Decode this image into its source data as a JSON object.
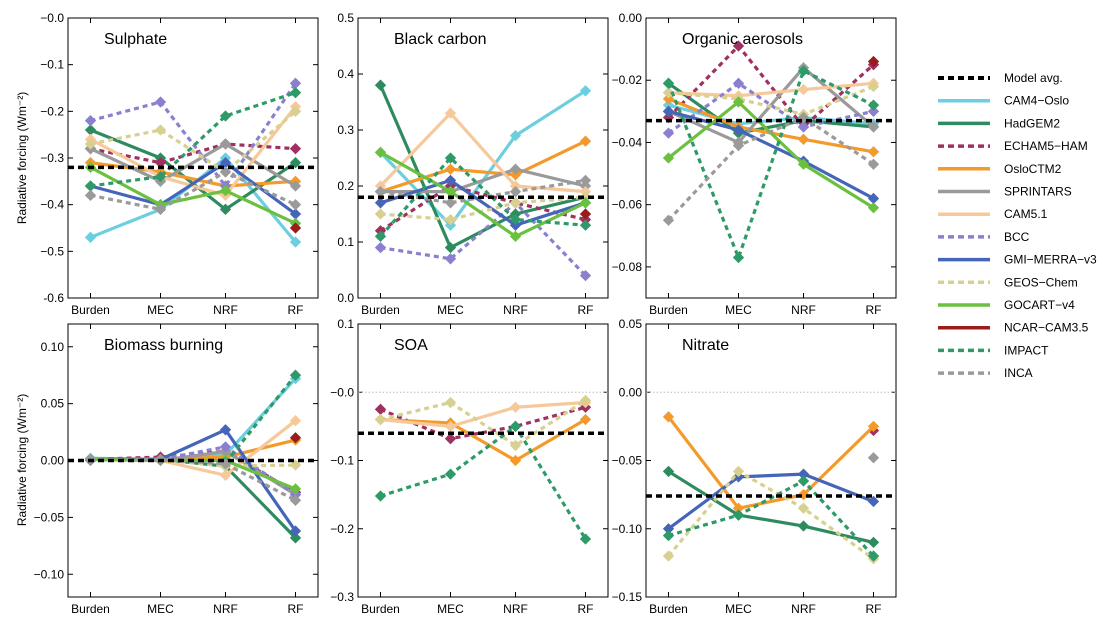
{
  "ylabel": "Radiative forcing (Wm⁻²)",
  "categories": [
    "Burden",
    "MEC",
    "NRF",
    "RF"
  ],
  "legend": [
    {
      "name": "Model avg.",
      "color": "#000000",
      "dash": true
    },
    {
      "name": "CAM4−Oslo",
      "color": "#6ccfe0",
      "dash": false
    },
    {
      "name": "HadGEM2",
      "color": "#2e8b5f",
      "dash": false
    },
    {
      "name": "ECHAM5−HAM",
      "color": "#a03060",
      "dash": true
    },
    {
      "name": "OsloCTM2",
      "color": "#f39a2a",
      "dash": false
    },
    {
      "name": "SPRINTARS",
      "color": "#9a9a9a",
      "dash": false
    },
    {
      "name": "CAM5.1",
      "color": "#f7c89a",
      "dash": false
    },
    {
      "name": "BCC",
      "color": "#8a80d0",
      "dash": true
    },
    {
      "name": "GMI−MERRA−v3",
      "color": "#4565b8",
      "dash": false
    },
    {
      "name": "GEOS−Chem",
      "color": "#d8d090",
      "dash": true
    },
    {
      "name": "GOCART−v4",
      "color": "#6cc040",
      "dash": false
    },
    {
      "name": "NCAR−CAM3.5",
      "color": "#9a1c1c",
      "dash": false
    },
    {
      "name": "IMPACT",
      "color": "#2e9a68",
      "dash": true
    },
    {
      "name": "INCA",
      "color": "#9a9a9a",
      "dash": true
    }
  ],
  "chart_data": [
    {
      "type": "line",
      "title": "Sulphate",
      "categories": [
        "Burden",
        "MEC",
        "NRF",
        "RF"
      ],
      "ylim": [
        -0.6,
        0.0
      ],
      "yticks": [
        -0.6,
        -0.5,
        -0.4,
        -0.3,
        -0.2,
        -0.1,
        0.0
      ],
      "ytick_labels": [
        "-0.6",
        "−0.5",
        "−0.4",
        "−0.3",
        "−0.2",
        "−0.1",
        "−0.0"
      ],
      "model_avg": -0.32,
      "zero_line": false,
      "series": [
        {
          "name": "CAM4−Oslo",
          "values": [
            -0.47,
            -0.41,
            -0.3,
            -0.48
          ]
        },
        {
          "name": "HadGEM2",
          "values": [
            -0.24,
            -0.3,
            -0.41,
            -0.31
          ]
        },
        {
          "name": "ECHAM5−HAM",
          "values": [
            -0.28,
            -0.31,
            -0.27,
            -0.28
          ]
        },
        {
          "name": "OsloCTM2",
          "values": [
            -0.31,
            -0.33,
            -0.36,
            -0.35
          ]
        },
        {
          "name": "SPRINTARS",
          "values": [
            -0.28,
            -0.35,
            -0.27,
            -0.36
          ]
        },
        {
          "name": "CAM5.1",
          "values": [
            -0.26,
            -0.34,
            -0.38,
            -0.19
          ]
        },
        {
          "name": "BCC",
          "values": [
            -0.22,
            -0.18,
            -0.36,
            -0.14
          ]
        },
        {
          "name": "GMI−MERRA−v3",
          "values": [
            -0.36,
            -0.4,
            -0.31,
            -0.42
          ]
        },
        {
          "name": "GEOS−Chem",
          "values": [
            -0.27,
            -0.24,
            -0.33,
            -0.2
          ]
        },
        {
          "name": "GOCART−v4",
          "values": [
            -0.32,
            -0.4,
            -0.37,
            -0.44
          ]
        },
        {
          "name": "NCAR−CAM3.5",
          "values": [
            null,
            null,
            null,
            -0.45
          ]
        },
        {
          "name": "IMPACT",
          "values": [
            -0.36,
            -0.34,
            -0.21,
            -0.16
          ]
        },
        {
          "name": "INCA",
          "values": [
            -0.38,
            -0.41,
            -0.33,
            -0.4
          ]
        }
      ]
    },
    {
      "type": "line",
      "title": "Black carbon",
      "categories": [
        "Burden",
        "MEC",
        "NRF",
        "RF"
      ],
      "ylim": [
        0.0,
        0.5
      ],
      "yticks": [
        0.0,
        0.1,
        0.2,
        0.3,
        0.4,
        0.5
      ],
      "ytick_labels": [
        "0.0",
        "0.1",
        "0.2",
        "0.3",
        "0.4",
        "0.5"
      ],
      "model_avg": 0.18,
      "zero_line": false,
      "series": [
        {
          "name": "CAM4−Oslo",
          "values": [
            0.26,
            0.13,
            0.29,
            0.37
          ]
        },
        {
          "name": "HadGEM2",
          "values": [
            0.38,
            0.09,
            0.15,
            0.18
          ]
        },
        {
          "name": "ECHAM5−HAM",
          "values": [
            0.12,
            0.2,
            0.17,
            0.14
          ]
        },
        {
          "name": "OsloCTM2",
          "values": [
            0.19,
            0.23,
            0.22,
            0.28
          ]
        },
        {
          "name": "SPRINTARS",
          "values": [
            0.19,
            0.19,
            0.23,
            0.2
          ]
        },
        {
          "name": "CAM5.1",
          "values": [
            0.2,
            0.33,
            0.2,
            0.19
          ]
        },
        {
          "name": "BCC",
          "values": [
            0.09,
            0.07,
            0.17,
            0.04
          ]
        },
        {
          "name": "GMI−MERRA−v3",
          "values": [
            0.17,
            0.21,
            0.13,
            0.17
          ]
        },
        {
          "name": "GEOS−Chem",
          "values": [
            0.15,
            0.14,
            0.17,
            0.18
          ]
        },
        {
          "name": "GOCART−v4",
          "values": [
            0.26,
            0.19,
            0.11,
            0.17
          ]
        },
        {
          "name": "NCAR−CAM3.5",
          "values": [
            null,
            null,
            null,
            0.15
          ]
        },
        {
          "name": "IMPACT",
          "values": [
            0.11,
            0.25,
            0.14,
            0.13
          ]
        },
        {
          "name": "INCA",
          "values": [
            0.19,
            0.17,
            0.19,
            0.21
          ]
        }
      ]
    },
    {
      "type": "line",
      "title": "Organic aerosols",
      "categories": [
        "Burden",
        "MEC",
        "NRF",
        "RF"
      ],
      "ylim": [
        -0.09,
        0.0
      ],
      "yticks": [
        -0.08,
        -0.06,
        -0.04,
        -0.02,
        0.0
      ],
      "ytick_labels": [
        "−0.08",
        "−0.06",
        "−0.04",
        "−0.02",
        "0.00"
      ],
      "model_avg": -0.033,
      "zero_line": false,
      "series": [
        {
          "name": "CAM4−Oslo",
          "values": [
            -0.028,
            -0.034,
            -0.032,
            -0.034
          ]
        },
        {
          "name": "HadGEM2",
          "values": [
            -0.021,
            -0.037,
            -0.033,
            -0.035
          ]
        },
        {
          "name": "ECHAM5−HAM",
          "values": [
            -0.032,
            -0.009,
            -0.035,
            -0.015
          ]
        },
        {
          "name": "OsloCTM2",
          "values": [
            -0.026,
            -0.035,
            -0.039,
            -0.043
          ]
        },
        {
          "name": "SPRINTARS",
          "values": [
            -0.03,
            -0.04,
            -0.016,
            -0.035
          ]
        },
        {
          "name": "CAM5.1",
          "values": [
            -0.024,
            -0.025,
            -0.023,
            -0.021
          ]
        },
        {
          "name": "BCC",
          "values": [
            -0.037,
            -0.021,
            -0.035,
            -0.03
          ]
        },
        {
          "name": "GMI−MERRA−v3",
          "values": [
            -0.03,
            -0.036,
            -0.046,
            -0.058
          ]
        },
        {
          "name": "GEOS−Chem",
          "values": [
            -0.024,
            -0.026,
            -0.031,
            -0.022
          ]
        },
        {
          "name": "GOCART−v4",
          "values": [
            -0.045,
            -0.027,
            -0.047,
            -0.061
          ]
        },
        {
          "name": "NCAR−CAM3.5",
          "values": [
            null,
            null,
            null,
            -0.014
          ]
        },
        {
          "name": "IMPACT",
          "values": [
            -0.021,
            -0.077,
            -0.017,
            -0.028
          ]
        },
        {
          "name": "INCA",
          "values": [
            -0.065,
            -0.041,
            -0.032,
            -0.047
          ]
        }
      ]
    },
    {
      "type": "line",
      "title": "Biomass burning",
      "categories": [
        "Burden",
        "MEC",
        "NRF",
        "RF"
      ],
      "ylim": [
        -0.12,
        0.12
      ],
      "yticks": [
        -0.1,
        -0.05,
        0.0,
        0.05,
        0.1
      ],
      "ytick_labels": [
        "−0.10",
        "−0.05",
        "0.00",
        "0.05",
        "0.10"
      ],
      "model_avg": 0.0,
      "zero_line": false,
      "series": [
        {
          "name": "CAM4−Oslo",
          "values": [
            0.002,
            0.001,
            0.005,
            0.072
          ]
        },
        {
          "name": "HadGEM2",
          "values": [
            0.001,
            0.001,
            -0.005,
            -0.068
          ]
        },
        {
          "name": "ECHAM5−HAM",
          "values": [
            0.001,
            0.003,
            0.008,
            -0.028
          ]
        },
        {
          "name": "OsloCTM2",
          "values": [
            0.001,
            0.001,
            0.003,
            0.018
          ]
        },
        {
          "name": "SPRINTARS",
          "values": [
            0.001,
            0.0,
            0.008,
            -0.03
          ]
        },
        {
          "name": "CAM5.1",
          "values": [
            0.001,
            0.0,
            -0.013,
            0.035
          ]
        },
        {
          "name": "BCC",
          "values": [
            0.0,
            0.001,
            0.012,
            -0.03
          ]
        },
        {
          "name": "GMI−MERRA−v3",
          "values": [
            0.001,
            0.001,
            0.027,
            -0.062
          ]
        },
        {
          "name": "GEOS−Chem",
          "values": [
            0.001,
            0.001,
            -0.005,
            -0.004
          ]
        },
        {
          "name": "GOCART−v4",
          "values": [
            0.001,
            0.0,
            0.0,
            -0.025
          ]
        },
        {
          "name": "NCAR−CAM3.5",
          "values": [
            null,
            null,
            null,
            0.02
          ]
        },
        {
          "name": "IMPACT",
          "values": [
            0.001,
            0.001,
            -0.002,
            0.075
          ]
        },
        {
          "name": "INCA",
          "values": [
            0.001,
            0.001,
            -0.003,
            -0.035
          ]
        }
      ]
    },
    {
      "type": "line",
      "title": "SOA",
      "categories": [
        "Burden",
        "MEC",
        "NRF",
        "RF"
      ],
      "ylim": [
        -0.3,
        0.1
      ],
      "yticks": [
        -0.3,
        -0.2,
        -0.1,
        0.0,
        0.1
      ],
      "ytick_labels": [
        "−0.3",
        "−0.2",
        "−0.1",
        "−0.0",
        "0.1"
      ],
      "model_avg": -0.06,
      "zero_line": true,
      "series": [
        {
          "name": "ECHAM5−HAM",
          "values": [
            -0.025,
            -0.068,
            -0.05,
            -0.022
          ]
        },
        {
          "name": "OsloCTM2",
          "values": [
            -0.04,
            -0.045,
            -0.1,
            -0.04
          ]
        },
        {
          "name": "CAM5.1",
          "values": [
            -0.04,
            -0.05,
            -0.022,
            -0.015
          ]
        },
        {
          "name": "GEOS−Chem",
          "values": [
            -0.04,
            -0.015,
            -0.078,
            -0.012
          ]
        },
        {
          "name": "IMPACT",
          "values": [
            -0.152,
            -0.12,
            -0.05,
            -0.215
          ]
        }
      ]
    },
    {
      "type": "line",
      "title": "Nitrate",
      "categories": [
        "Burden",
        "MEC",
        "NRF",
        "RF"
      ],
      "ylim": [
        -0.15,
        0.05
      ],
      "yticks": [
        -0.15,
        -0.1,
        -0.05,
        0.0,
        0.05
      ],
      "ytick_labels": [
        "−0.15",
        "−0.10",
        "−0.05",
        "0.00",
        "0.05"
      ],
      "model_avg": -0.076,
      "zero_line": true,
      "series": [
        {
          "name": "HadGEM2",
          "values": [
            -0.058,
            -0.09,
            -0.098,
            -0.11
          ]
        },
        {
          "name": "ECHAM5−HAM",
          "values": [
            null,
            null,
            null,
            -0.028
          ]
        },
        {
          "name": "OsloCTM2",
          "values": [
            -0.018,
            -0.085,
            -0.075,
            -0.025
          ]
        },
        {
          "name": "GMI−MERRA−v3",
          "values": [
            -0.1,
            -0.062,
            -0.06,
            -0.08
          ]
        },
        {
          "name": "GEOS−Chem",
          "values": [
            -0.12,
            -0.058,
            -0.085,
            -0.122
          ]
        },
        {
          "name": "IMPACT",
          "values": [
            -0.105,
            -0.09,
            -0.065,
            -0.12
          ]
        },
        {
          "name": "INCA",
          "values": [
            null,
            null,
            null,
            -0.048
          ]
        }
      ]
    }
  ]
}
